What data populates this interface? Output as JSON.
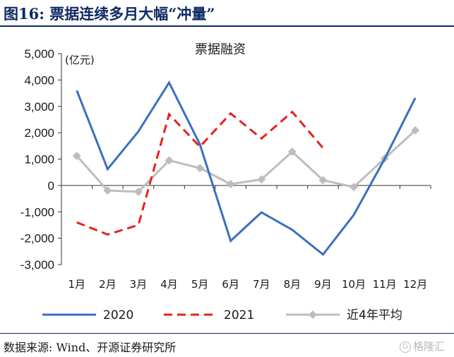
{
  "figure": {
    "title": "图16:  票据连续多月大幅“冲量”",
    "source": "数据来源:  Wind、开源证券研究所",
    "watermark": "格隆汇"
  },
  "colors": {
    "header": "#0f2a63",
    "series_2020": "#3a6fbf",
    "series_2021": "#e8211d",
    "series_avg": "#bdbdbd"
  },
  "chart_data": {
    "type": "line",
    "title": "票据融资",
    "ylabel": "(亿元)",
    "xlabel": "",
    "categories": [
      "1月",
      "2月",
      "3月",
      "4月",
      "5月",
      "6月",
      "7月",
      "8月",
      "9月",
      "10月",
      "11月",
      "12月"
    ],
    "ylim": [
      -3000,
      5000
    ],
    "yticks": [
      5000,
      4000,
      3000,
      2000,
      1000,
      0,
      -1000,
      -2000,
      -3000
    ],
    "ytick_labels": [
      "5,000",
      "4,000",
      "3,000",
      "2,000",
      "1,000",
      "0",
      "-1,000",
      "-2,000",
      "-3,000"
    ],
    "grid": false,
    "legend_position": "bottom",
    "series": [
      {
        "name": "2020",
        "style": "solid",
        "marker": "none",
        "values": [
          3600,
          620,
          2050,
          3900,
          1560,
          -2100,
          -1020,
          -1680,
          -2620,
          -1120,
          1000,
          3320
        ]
      },
      {
        "name": "2021",
        "style": "dashed",
        "marker": "none",
        "values": [
          -1400,
          -1860,
          -1500,
          2700,
          1470,
          2730,
          1780,
          2790,
          1420,
          null,
          null,
          null
        ]
      },
      {
        "name": "近4年平均",
        "style": "solid",
        "marker": "diamond",
        "values": [
          1120,
          -190,
          -240,
          950,
          660,
          50,
          230,
          1280,
          200,
          -60,
          1020,
          2090
        ]
      }
    ]
  }
}
